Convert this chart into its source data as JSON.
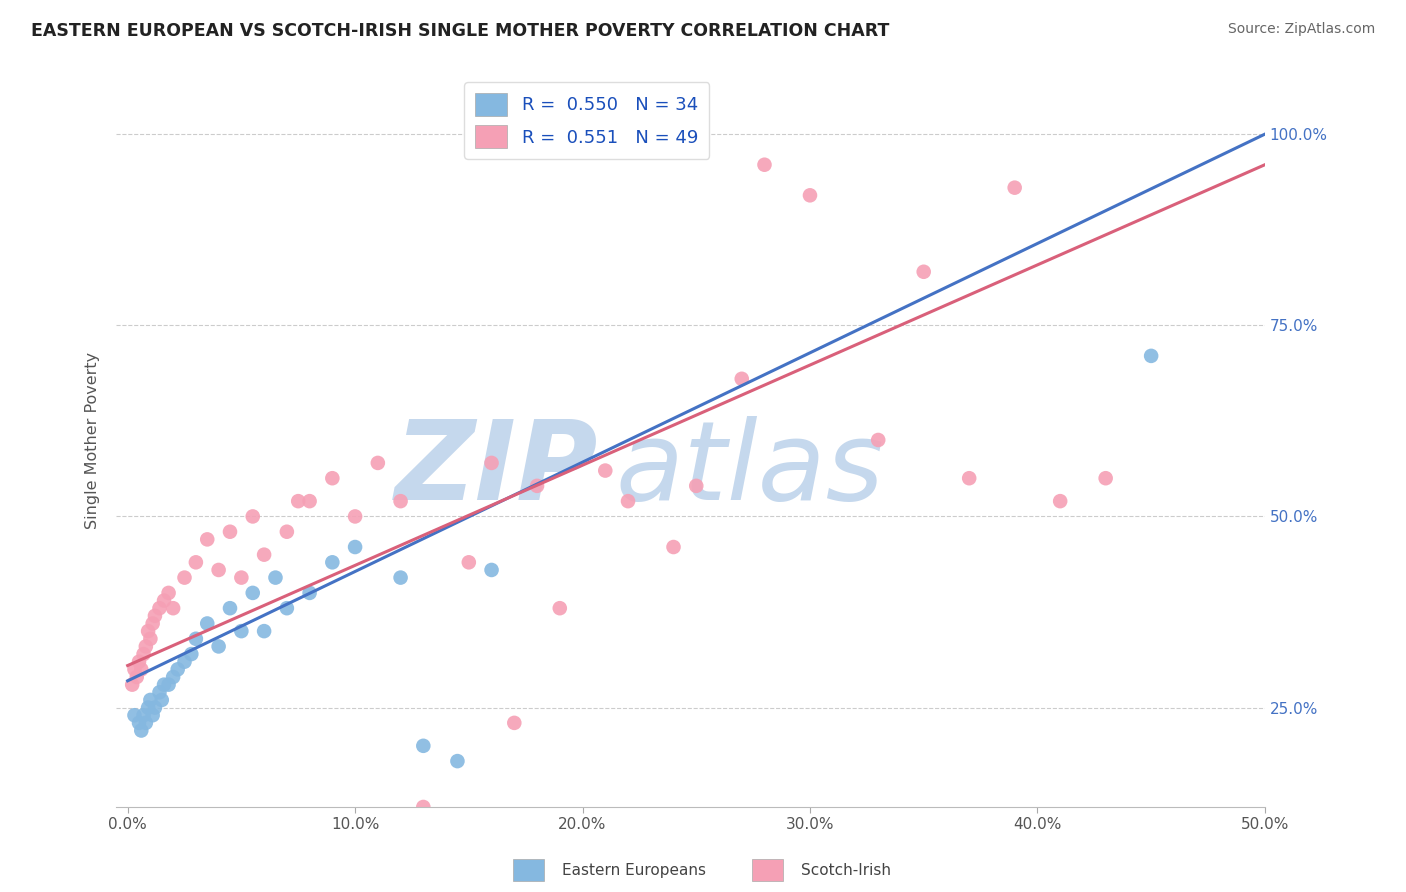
{
  "title": "EASTERN EUROPEAN VS SCOTCH-IRISH SINGLE MOTHER POVERTY CORRELATION CHART",
  "source": "Source: ZipAtlas.com",
  "ylabel": "Single Mother Poverty",
  "x_tick_labels": [
    "0.0%",
    "10.0%",
    "20.0%",
    "30.0%",
    "40.0%",
    "50.0%"
  ],
  "x_tick_values": [
    0,
    10,
    20,
    30,
    40,
    50
  ],
  "y_tick_labels_right": [
    "25.0%",
    "50.0%",
    "75.0%",
    "100.0%"
  ],
  "y_tick_values": [
    25,
    50,
    75,
    100
  ],
  "xlim": [
    -0.5,
    50
  ],
  "ylim": [
    12,
    108
  ],
  "blue_label": "Eastern Europeans",
  "pink_label": "Scotch-Irish",
  "blue_R": "0.550",
  "blue_N": "34",
  "pink_R": "0.551",
  "pink_N": "49",
  "blue_color": "#85B8E0",
  "pink_color": "#F5A0B5",
  "blue_line_color": "#4472C4",
  "pink_line_color": "#D9607A",
  "watermark_text": "ZIP",
  "watermark_text2": "atlas",
  "watermark_color": "#C5D8ED",
  "blue_x": [
    0.3,
    0.5,
    0.6,
    0.7,
    0.8,
    0.9,
    1.0,
    1.1,
    1.2,
    1.4,
    1.5,
    1.6,
    1.8,
    2.0,
    2.2,
    2.5,
    2.8,
    3.0,
    3.5,
    4.0,
    4.5,
    5.0,
    5.5,
    6.0,
    6.5,
    7.0,
    8.0,
    9.0,
    10.0,
    12.0,
    13.0,
    14.5,
    16.0,
    45.0
  ],
  "blue_y": [
    24,
    23,
    22,
    24,
    23,
    25,
    26,
    24,
    25,
    27,
    26,
    28,
    28,
    29,
    30,
    31,
    32,
    34,
    36,
    33,
    38,
    35,
    40,
    35,
    42,
    38,
    40,
    44,
    46,
    42,
    20,
    18,
    43,
    71
  ],
  "pink_x": [
    0.2,
    0.3,
    0.4,
    0.5,
    0.6,
    0.7,
    0.8,
    0.9,
    1.0,
    1.1,
    1.2,
    1.4,
    1.6,
    1.8,
    2.0,
    2.5,
    3.0,
    3.5,
    4.0,
    4.5,
    5.0,
    5.5,
    6.0,
    7.0,
    7.5,
    8.0,
    9.0,
    10.0,
    11.0,
    12.0,
    13.0,
    15.0,
    16.0,
    17.0,
    18.0,
    19.0,
    21.0,
    22.0,
    24.0,
    25.0,
    27.0,
    28.0,
    30.0,
    33.0,
    35.0,
    37.0,
    39.0,
    41.0,
    43.0
  ],
  "pink_y": [
    28,
    30,
    29,
    31,
    30,
    32,
    33,
    35,
    34,
    36,
    37,
    38,
    39,
    40,
    38,
    42,
    44,
    47,
    43,
    48,
    42,
    50,
    45,
    48,
    52,
    52,
    55,
    50,
    57,
    52,
    12,
    44,
    57,
    23,
    54,
    38,
    56,
    52,
    46,
    54,
    68,
    96,
    92,
    60,
    82,
    55,
    93,
    52,
    55
  ],
  "blue_line_x0": 0,
  "blue_line_x1": 50,
  "blue_line_y0": 28.5,
  "blue_line_y1": 100,
  "pink_line_x0": 0,
  "pink_line_x1": 50,
  "pink_line_y0": 30.5,
  "pink_line_y1": 96
}
